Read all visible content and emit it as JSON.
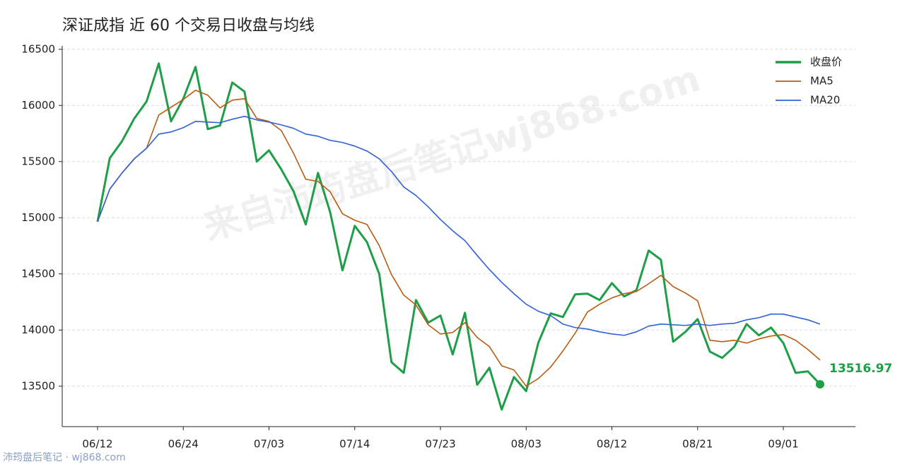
{
  "chart_data": {
    "type": "line",
    "title": "深证成指 近 60 个交易日收盘与均线",
    "watermark": "来自沛筠盘后笔记wj868.com",
    "footer": "沛筠盘后笔记 · wj868.com",
    "categories": [
      "06/12",
      null,
      null,
      null,
      null,
      null,
      null,
      "06/24",
      null,
      null,
      null,
      null,
      null,
      null,
      "07/03",
      null,
      null,
      null,
      null,
      null,
      null,
      "07/14",
      null,
      null,
      null,
      null,
      null,
      null,
      "07/23",
      null,
      null,
      null,
      null,
      null,
      null,
      "08/03",
      null,
      null,
      null,
      null,
      null,
      null,
      "08/12",
      null,
      null,
      null,
      null,
      null,
      null,
      "08/21",
      null,
      null,
      null,
      null,
      null,
      null,
      "09/01",
      null,
      null,
      null
    ],
    "series": [
      {
        "name": "收盘价",
        "color": "#1f9e48",
        "values": [
          14965,
          15531,
          15682,
          15884,
          16035,
          16374,
          15858,
          16060,
          16343,
          15789,
          15821,
          16204,
          16123,
          15500,
          15600,
          15431,
          15236,
          14940,
          15399,
          15047,
          14531,
          14928,
          14783,
          14500,
          13714,
          13619,
          14267,
          14066,
          14129,
          13783,
          14154,
          13513,
          13664,
          13292,
          13582,
          13456,
          13890,
          14148,
          14116,
          14318,
          14324,
          14267,
          14418,
          14299,
          14355,
          14708,
          14626,
          13896,
          13984,
          14097,
          13808,
          13752,
          13852,
          14053,
          13953,
          14022,
          13884,
          13619,
          13632,
          13516.97
        ]
      },
      {
        "name": "MA5",
        "color": "#b85c14",
        "values": [
          14965,
          15255,
          15399,
          15525,
          15619,
          15915,
          15984,
          16053,
          16135,
          16091,
          15978,
          16047,
          16060,
          15884,
          15858,
          15777,
          15575,
          15343,
          15324,
          15230,
          15035,
          14978,
          14940,
          14752,
          14494,
          14311,
          14223,
          14047,
          13965,
          13978,
          14066,
          13934,
          13852,
          13682,
          13645,
          13500,
          13569,
          13670,
          13814,
          13972,
          14160,
          14230,
          14286,
          14324,
          14343,
          14412,
          14487,
          14387,
          14330,
          14261,
          13909,
          13896,
          13909,
          13884,
          13921,
          13947,
          13959,
          13909,
          13827,
          13733
        ]
      },
      {
        "name": "MA20",
        "color": "#2f62d8",
        "values": [
          14965,
          15255,
          15399,
          15525,
          15619,
          15745,
          15764,
          15802,
          15858,
          15852,
          15846,
          15877,
          15903,
          15871,
          15852,
          15827,
          15796,
          15745,
          15726,
          15689,
          15670,
          15638,
          15594,
          15525,
          15412,
          15274,
          15198,
          15097,
          14984,
          14884,
          14796,
          14664,
          14538,
          14425,
          14324,
          14230,
          14167,
          14129,
          14053,
          14022,
          14009,
          13984,
          13965,
          13953,
          13984,
          14035,
          14053,
          14047,
          14041,
          14053,
          14041,
          14053,
          14060,
          14091,
          14110,
          14142,
          14142,
          14116,
          14091,
          14053
        ]
      }
    ],
    "ylim": [
      13140,
      16530
    ],
    "yticks": [
      13500,
      14000,
      14500,
      15000,
      15500,
      16000,
      16500
    ],
    "grid": true,
    "legend": "upper-right"
  }
}
